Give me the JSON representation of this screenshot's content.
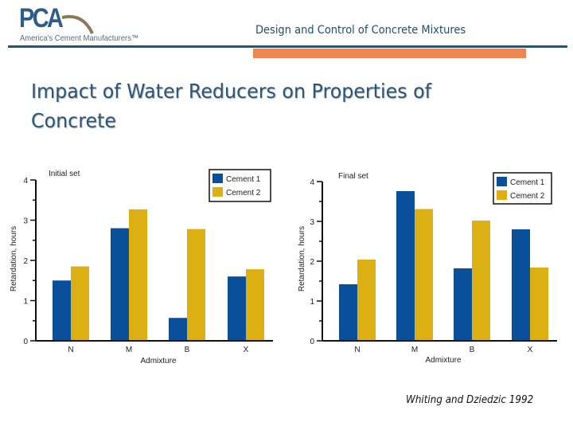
{
  "header": {
    "logo_text": "PCA",
    "logo_tagline": "America's Cement Manufacturers™",
    "deck_title": "Design and Control of Concrete Mixtures"
  },
  "slide": {
    "title": "Impact of Water Reducers on Properties of Concrete",
    "citation": "Whiting and Dziedzic 1992"
  },
  "colors": {
    "cement1": "#0a4f9a",
    "cement2": "#dcaf12",
    "rule": "#1d5a7a",
    "accent": "#f0864f"
  },
  "chart_data": [
    {
      "type": "bar",
      "title": "Initial set",
      "xlabel": "Admixture",
      "ylabel": "Retardation, hours",
      "categories": [
        "N",
        "M",
        "B",
        "X"
      ],
      "yticks": [
        "0",
        "1",
        "2",
        "3",
        "4"
      ],
      "ylim": [
        0,
        4
      ],
      "legend": "top-right",
      "grid": false,
      "series": [
        {
          "name": "Cement 1",
          "values": [
            1.5,
            2.8,
            0.57,
            1.6
          ]
        },
        {
          "name": "Cement 2",
          "values": [
            1.85,
            3.27,
            2.78,
            1.78
          ]
        }
      ]
    },
    {
      "type": "bar",
      "title": "Final set",
      "xlabel": "Admixture",
      "ylabel": "Retardation, hours",
      "categories": [
        "N",
        "M",
        "B",
        "X"
      ],
      "yticks": [
        "0",
        "1",
        "2",
        "3",
        "4"
      ],
      "ylim": [
        0,
        4
      ],
      "legend": "top-right",
      "grid": false,
      "series": [
        {
          "name": "Cement 1",
          "values": [
            1.42,
            3.76,
            1.82,
            2.8
          ]
        },
        {
          "name": "Cement 2",
          "values": [
            2.04,
            3.31,
            3.02,
            1.84
          ]
        }
      ]
    }
  ]
}
